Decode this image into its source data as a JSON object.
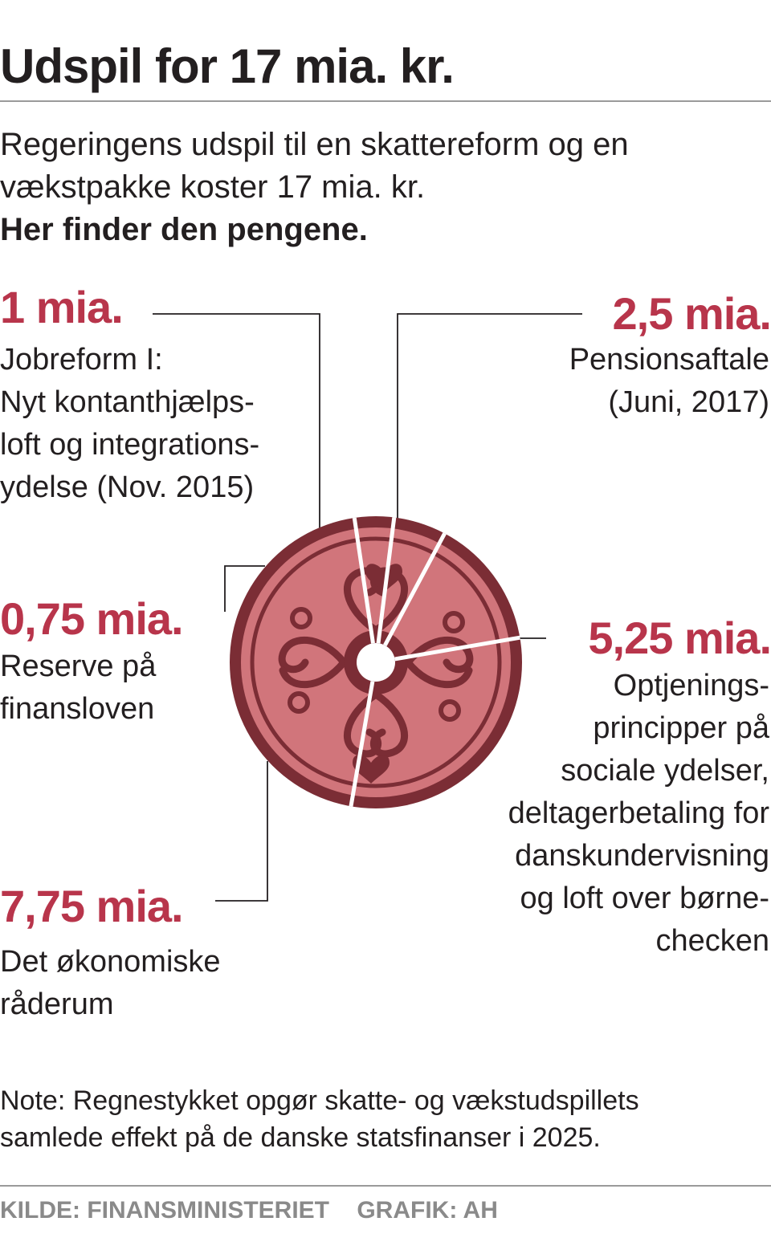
{
  "title": "Udspil for 17 mia. kr.",
  "intro": {
    "line1": "Regeringens udspil til en skattereform og en",
    "line2": "vækstpakke koster 17 mia. kr.",
    "line3": "Her finder den pengene."
  },
  "colors": {
    "accent": "#b8354b",
    "coin_dark": "#7b2d35",
    "coin_face": "#d1757b",
    "leader": "#231f20"
  },
  "chart_data": {
    "type": "pie",
    "unit": "mia. kr.",
    "total": 17,
    "slices": [
      {
        "value": 2.5,
        "label": "2,5 mia.",
        "desc": [
          "Pensionsaftale",
          "(Juni, 2017)"
        ]
      },
      {
        "value": 5.25,
        "label": "5,25 mia.",
        "desc": [
          "Optjenings-",
          "principper på",
          "sociale ydelser,",
          "deltagerbetaling for",
          "danskundervisning",
          "og loft over børne-",
          "checken"
        ]
      },
      {
        "value": 7.75,
        "label": "7,75 mia.",
        "desc": [
          "Det økonomiske",
          "råderum"
        ]
      },
      {
        "value": 0.75,
        "label": "0,75 mia.",
        "desc": [
          "Reserve på",
          "finansloven"
        ]
      },
      {
        "value": 1,
        "label": "1 mia.",
        "desc": [
          "Jobreform I:",
          "Nyt kontanthjælps-",
          "loft og integrations-",
          "ydelse (Nov. 2015)"
        ]
      }
    ]
  },
  "note": {
    "line1": "Note: Regnestykket opgør skatte- og vækstudspillets",
    "line2": "samlede effekt på de danske statsfinanser i 2025."
  },
  "footer": {
    "source": "KILDE: FINANSMINISTERIET",
    "graphic": "GRAFIK: AH"
  }
}
